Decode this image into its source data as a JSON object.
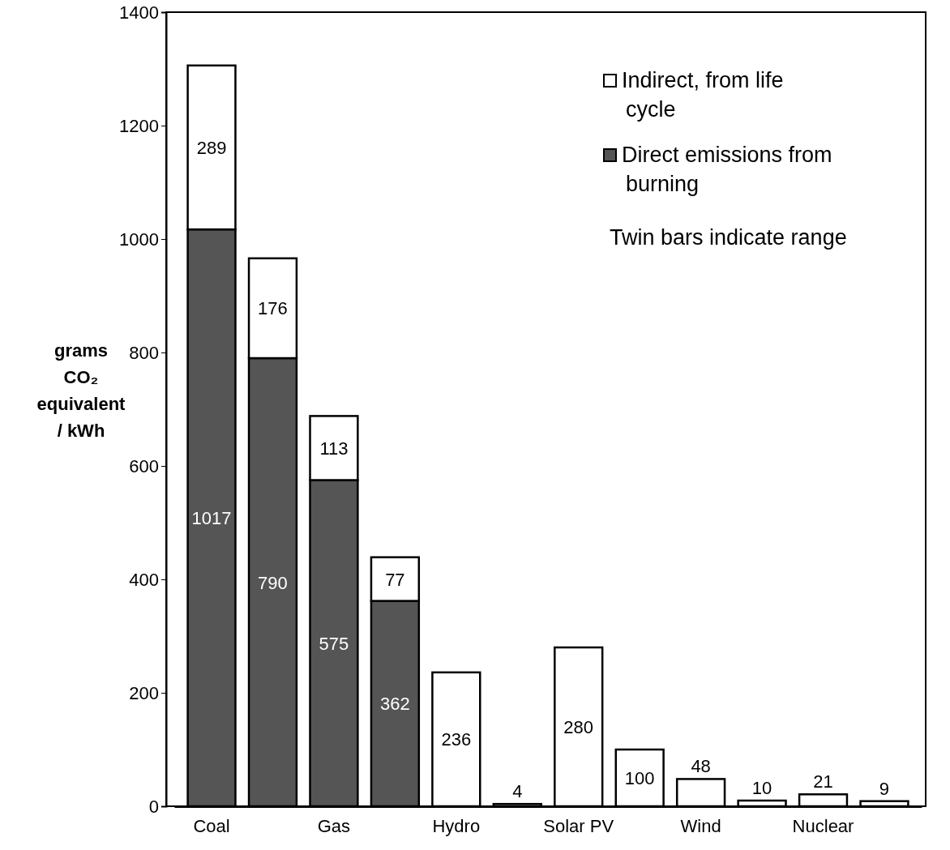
{
  "chart_data": {
    "type": "bar",
    "stacked": true,
    "ylabel": "grams CO₂ equivalent / kWh",
    "categories": [
      "Coal",
      null,
      "Gas",
      null,
      "Hydro",
      null,
      "Solar PV",
      null,
      "Wind",
      null,
      "Nuclear",
      null
    ],
    "series": [
      {
        "name": "Direct emissions from burning",
        "color": "#555555",
        "values": [
          1017,
          790,
          575,
          362,
          null,
          null,
          null,
          null,
          null,
          null,
          null,
          null
        ],
        "value_labels": [
          "1017",
          "790",
          "575",
          "362",
          null,
          null,
          null,
          null,
          null,
          null,
          null,
          null
        ]
      },
      {
        "name": "Indirect, from life cycle",
        "color": "#ffffff",
        "values": [
          289,
          176,
          113,
          77,
          236,
          4,
          280,
          100,
          48,
          10,
          21,
          9
        ],
        "value_labels": [
          "289",
          "176",
          "113",
          "77",
          "236",
          "4",
          "280",
          "100",
          "48",
          "10",
          "21",
          "9"
        ]
      }
    ],
    "ylim": [
      0,
      1400
    ],
    "yticks": [
      0,
      200,
      400,
      600,
      800,
      1000,
      1200,
      1400
    ],
    "legend": "top right",
    "annotations": [
      "Twin bars indicate range"
    ]
  }
}
